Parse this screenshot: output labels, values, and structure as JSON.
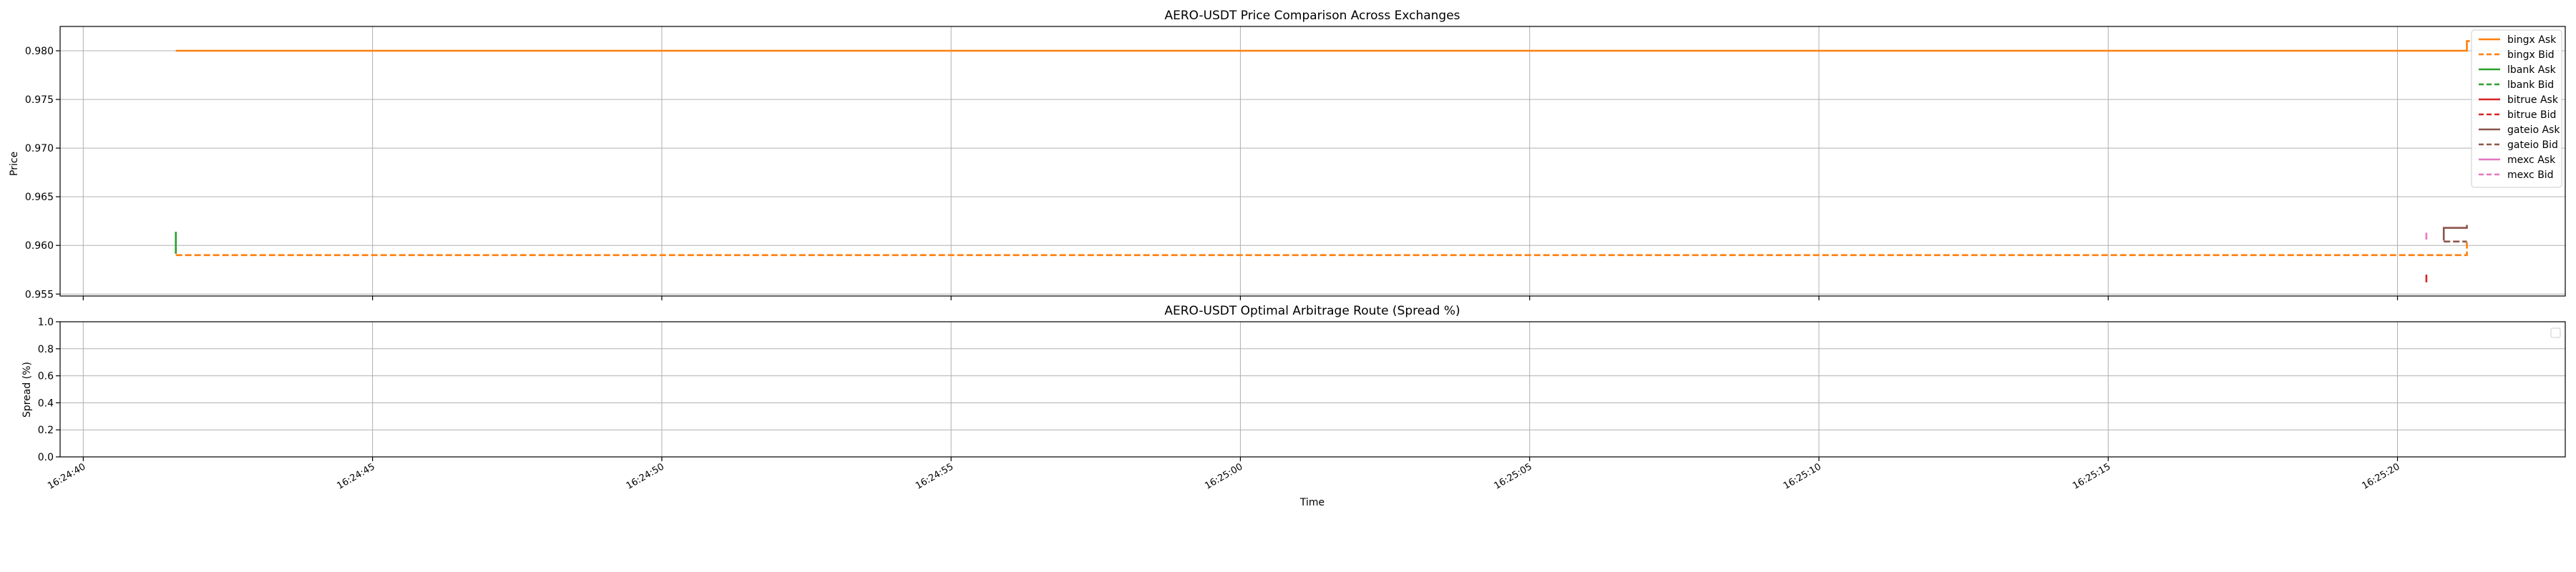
{
  "chart_data": [
    {
      "type": "line",
      "title": "AERO-USDT Price Comparison Across Exchanges",
      "xlabel": "",
      "ylabel": "Price",
      "xlim": [
        "16:24:39.6",
        "16:25:22.9"
      ],
      "ylim": [
        0.9548,
        0.9825
      ],
      "yticks": [
        "0.955",
        "0.960",
        "0.965",
        "0.970",
        "0.975",
        "0.980"
      ],
      "ytick_values": [
        0.955,
        0.96,
        0.965,
        0.97,
        0.975,
        0.98
      ],
      "grid": true,
      "legend_position": "top-right",
      "series": [
        {
          "name": "bingx Ask",
          "color": "#ff7f0e",
          "dash": "solid",
          "x": [
            "16:24:41.6",
            "16:25:21.2",
            "16:25:21.2",
            "16:25:21.25"
          ],
          "y": [
            0.98,
            0.98,
            0.981,
            0.981
          ]
        },
        {
          "name": "bingx Bid",
          "color": "#ff7f0e",
          "dash": "dashed",
          "x": [
            "16:24:41.6",
            "16:25:21.2",
            "16:25:21.2"
          ],
          "y": [
            0.959,
            0.959,
            0.9605
          ]
        },
        {
          "name": "lbank Ask",
          "color": "#2ca02c",
          "dash": "solid",
          "x": [
            "16:24:41.6",
            "16:24:41.6"
          ],
          "y": [
            0.9614,
            0.9598
          ]
        },
        {
          "name": "lbank Bid",
          "color": "#2ca02c",
          "dash": "dashed",
          "x": [
            "16:24:41.6",
            "16:24:41.6"
          ],
          "y": [
            0.9598,
            0.959
          ]
        },
        {
          "name": "bitrue Ask",
          "color": "#d62728",
          "dash": "solid",
          "x": [
            "16:25:20.5",
            "16:25:20.5"
          ],
          "y": [
            0.957,
            0.9566
          ]
        },
        {
          "name": "bitrue Bid",
          "color": "#d62728",
          "dash": "dashed",
          "x": [
            "16:25:20.5",
            "16:25:20.5"
          ],
          "y": [
            0.9566,
            0.9562
          ]
        },
        {
          "name": "gateio Ask",
          "color": "#8c564b",
          "dash": "solid",
          "x": [
            "16:25:20.8",
            "16:25:20.8",
            "16:25:21.2",
            "16:25:21.2"
          ],
          "y": [
            0.9605,
            0.9618,
            0.9618,
            0.9621
          ]
        },
        {
          "name": "gateio Bid",
          "color": "#8c564b",
          "dash": "dashed",
          "x": [
            "16:25:20.8",
            "16:25:21.2"
          ],
          "y": [
            0.9604,
            0.9604
          ]
        },
        {
          "name": "mexc Ask",
          "color": "#e377c2",
          "dash": "solid",
          "x": [
            "16:25:20.5",
            "16:25:20.5"
          ],
          "y": [
            0.9613,
            0.961
          ]
        },
        {
          "name": "mexc Bid",
          "color": "#e377c2",
          "dash": "dashed",
          "x": [
            "16:25:20.5",
            "16:25:20.5"
          ],
          "y": [
            0.961,
            0.9606
          ]
        }
      ]
    },
    {
      "type": "line",
      "title": "AERO-USDT Optimal Arbitrage Route (Spread %)",
      "xlabel": "Time",
      "ylabel": "Spread (%)",
      "xlim": [
        "16:24:39.6",
        "16:25:22.9"
      ],
      "ylim": [
        0.0,
        1.0
      ],
      "yticks": [
        "0.0",
        "0.2",
        "0.4",
        "0.6",
        "0.8",
        "1.0"
      ],
      "ytick_values": [
        0.0,
        0.2,
        0.4,
        0.6,
        0.8,
        1.0
      ],
      "xticks": [
        "16:24:40",
        "16:24:45",
        "16:24:50",
        "16:24:55",
        "16:25:00",
        "16:25:05",
        "16:25:10",
        "16:25:15",
        "16:25:20"
      ],
      "grid": true,
      "legend_position": "top-right",
      "series": []
    }
  ]
}
